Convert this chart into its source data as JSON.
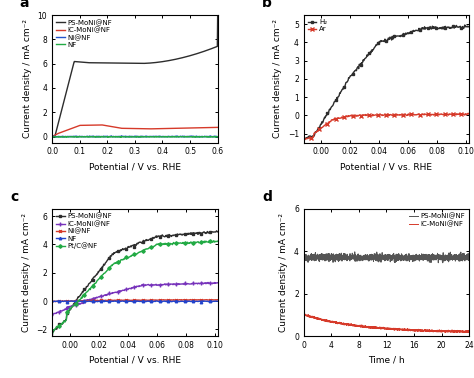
{
  "panel_a": {
    "label": "a",
    "xlabel": "Potential / V vs. RHE",
    "ylabel": "Current density / mA cm⁻²",
    "xlim": [
      0.0,
      0.6
    ],
    "ylim": [
      -0.5,
      10
    ],
    "xticks": [
      0.0,
      0.1,
      0.2,
      0.3,
      0.4,
      0.5,
      0.6
    ],
    "yticks": [
      0,
      2,
      4,
      6,
      8,
      10
    ],
    "series": [
      {
        "label": "PS-MoNi@NF",
        "color": "#2d2d2d"
      },
      {
        "label": "IC-MoNi@NF",
        "color": "#d63a2a"
      },
      {
        "label": "Ni@NF",
        "color": "#2255cc"
      },
      {
        "label": "NF",
        "color": "#22aa44"
      }
    ]
  },
  "panel_b": {
    "label": "b",
    "xlabel": "Potential / V vs. RHE",
    "ylabel": "Current density / mA cm⁻²",
    "xlim": [
      -0.012,
      0.102
    ],
    "ylim": [
      -1.5,
      5.5
    ],
    "xticks": [
      0.0,
      0.02,
      0.04,
      0.06,
      0.08,
      0.1
    ],
    "yticks": [
      -1,
      0,
      1,
      2,
      3,
      4,
      5
    ],
    "series": [
      {
        "label": "H₂",
        "color": "#2d2d2d",
        "marker": "s"
      },
      {
        "label": "Ar",
        "color": "#d63a2a",
        "marker": "x"
      }
    ]
  },
  "panel_c": {
    "label": "c",
    "xlabel": "Potential / V vs. RHE",
    "ylabel": "Current density / mA cm⁻²",
    "xlim": [
      -0.012,
      0.102
    ],
    "ylim": [
      -2.5,
      6.5
    ],
    "xticks": [
      0.0,
      0.02,
      0.04,
      0.06,
      0.08,
      0.1
    ],
    "yticks": [
      -2,
      0,
      2,
      4,
      6
    ],
    "series": [
      {
        "label": "PS-MoNi@NF",
        "color": "#2d2d2d",
        "marker": "s"
      },
      {
        "label": "IC-MoNi@NF",
        "color": "#7733bb",
        "marker": "+"
      },
      {
        "label": "Ni@NF",
        "color": "#d63a2a",
        "marker": "x"
      },
      {
        "label": "NF",
        "color": "#2244cc",
        "marker": "^"
      },
      {
        "label": "Pt/C@NF",
        "color": "#22aa44",
        "marker": "D"
      }
    ]
  },
  "panel_d": {
    "label": "d",
    "xlabel": "Time / h",
    "ylabel": "Current density / mA cm⁻²",
    "xlim": [
      0,
      24
    ],
    "ylim": [
      0,
      6
    ],
    "xticks": [
      0,
      4,
      8,
      12,
      16,
      20,
      24
    ],
    "yticks": [
      0,
      2,
      4,
      6
    ],
    "series": [
      {
        "label": "PS-MoNi@NF",
        "color": "#555555"
      },
      {
        "label": "IC-MoNi@NF",
        "color": "#d63a2a"
      }
    ]
  }
}
